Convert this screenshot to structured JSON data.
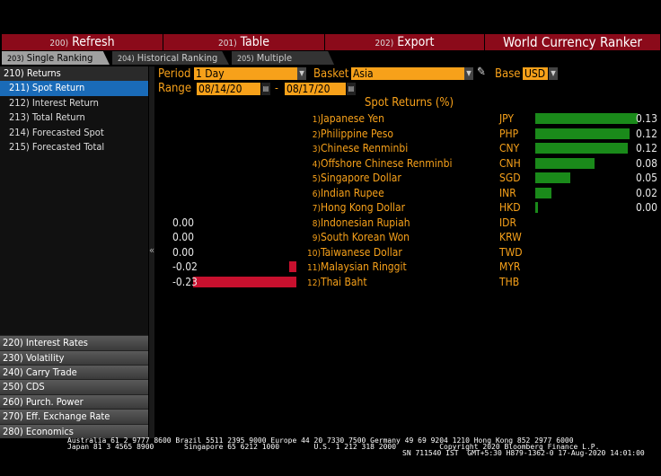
{
  "menu": [
    {
      "num": "200)",
      "label": "Refresh"
    },
    {
      "num": "201)",
      "label": "Table"
    },
    {
      "num": "202)",
      "label": "Export"
    }
  ],
  "app_title": "World Currency Ranker",
  "tabs": [
    {
      "num": "203)",
      "label": "Single Ranking",
      "active": true
    },
    {
      "num": "204)",
      "label": "Historical Ranking"
    },
    {
      "num": "205)",
      "label": "Multiple Ranking"
    }
  ],
  "sidebar": {
    "header": "210) Returns",
    "items": [
      "211) Spot Return",
      "212) Interest Return",
      "213) Total Return",
      "214) Forecasted Spot",
      "215) Forecasted Total"
    ],
    "sections": [
      "220) Interest Rates",
      "230) Volatility",
      "240) Carry Trade",
      "250) CDS",
      "260) Purch. Power",
      "270) Eff. Exchange Rate",
      "280) Economics"
    ],
    "collapse": "«"
  },
  "controls": {
    "period_label": "Period",
    "period": "1 Day",
    "basket_label": "Basket",
    "basket": "Asia",
    "base_label": "Base",
    "base": "USD",
    "range_label": "Range",
    "start": "08/14/20",
    "dash": "-",
    "end": "08/17/20"
  },
  "table": {
    "title": "Spot Returns (%)",
    "rows": [
      {
        "rank": "1)",
        "name": "Japanese Yen",
        "ccy": "JPY",
        "value": "0.13"
      },
      {
        "rank": "2)",
        "name": "Philippine Peso",
        "ccy": "PHP",
        "value": "0.12"
      },
      {
        "rank": "3)",
        "name": "Chinese Renminbi",
        "ccy": "CNY",
        "value": "0.12"
      },
      {
        "rank": "4)",
        "name": "Offshore Chinese Renminbi",
        "ccy": "CNH",
        "value": "0.08"
      },
      {
        "rank": "5)",
        "name": "Singapore Dollar",
        "ccy": "SGD",
        "value": "0.05"
      },
      {
        "rank": "6)",
        "name": "Indian Rupee",
        "ccy": "INR",
        "value": "0.02"
      },
      {
        "rank": "7)",
        "name": "Hong Kong Dollar",
        "ccy": "HKD",
        "value": "0.00"
      },
      {
        "rank": "8)",
        "name": "Indonesian Rupiah",
        "ccy": "IDR",
        "value": "0.00"
      },
      {
        "rank": "9)",
        "name": "South Korean Won",
        "ccy": "KRW",
        "value": "0.00"
      },
      {
        "rank": "10)",
        "name": "Taiwanese Dollar",
        "ccy": "TWD",
        "value": "0.00"
      },
      {
        "rank": "11)",
        "name": "Malaysian Ringgit",
        "ccy": "MYR",
        "value": "-0.02"
      },
      {
        "rank": "12)",
        "name": "Thai Baht",
        "ccy": "THB",
        "value": "-0.23"
      }
    ]
  },
  "bar_values": [
    0.13,
    0.12,
    0.118,
    0.075,
    0.045,
    0.02,
    0.002,
    0,
    0,
    0,
    -0.017,
    -0.23
  ],
  "colors": {
    "positive": "#1a8a1a",
    "negative": "#c8102e",
    "accent": "#f7a11a",
    "menu": "#8b0a1a"
  },
  "footer": {
    "line1": "Australia 61 2 9777 8600 Brazil 5511 2395 9000 Europe 44 20 7330 7500 Germany 49 69 9204 1210 Hong Kong 852 2977 6000",
    "line2": "Japan 81 3 4565 8900       Singapore 65 6212 1000        U.S. 1 212 318 2000          Copyright 2020 Bloomberg Finance L.P.",
    "line3": "SN 711540 IST  GMT+5:30 H879-1362-0 17-Aug-2020 14:01:00"
  }
}
